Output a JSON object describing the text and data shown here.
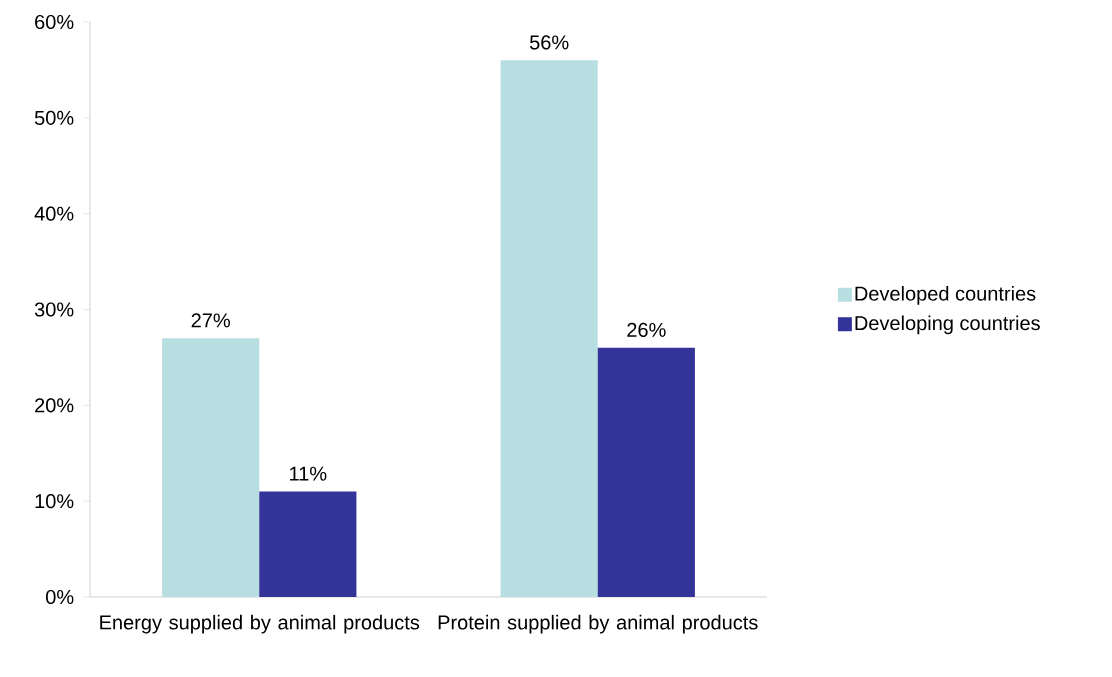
{
  "chart_data": {
    "type": "bar",
    "categories": [
      "Energy supplied by animal products",
      "Protein supplied by animal products"
    ],
    "series": [
      {
        "name": "Developed countries",
        "color": "#b7dfe2",
        "values": [
          27,
          56
        ],
        "value_labels": [
          "27%",
          "56%"
        ]
      },
      {
        "name": "Developing countries",
        "color": "#333399",
        "values": [
          11,
          26
        ],
        "value_labels": [
          "11%",
          "26%"
        ]
      }
    ],
    "ylim": [
      0,
      60
    ],
    "yticks": [
      {
        "value": 0,
        "label": "0%"
      },
      {
        "value": 10,
        "label": "10%"
      },
      {
        "value": 20,
        "label": "20%"
      },
      {
        "value": 30,
        "label": "30%"
      },
      {
        "value": 40,
        "label": "40%"
      },
      {
        "value": 50,
        "label": "50%"
      },
      {
        "value": 60,
        "label": "60%"
      }
    ],
    "legend": "right"
  }
}
